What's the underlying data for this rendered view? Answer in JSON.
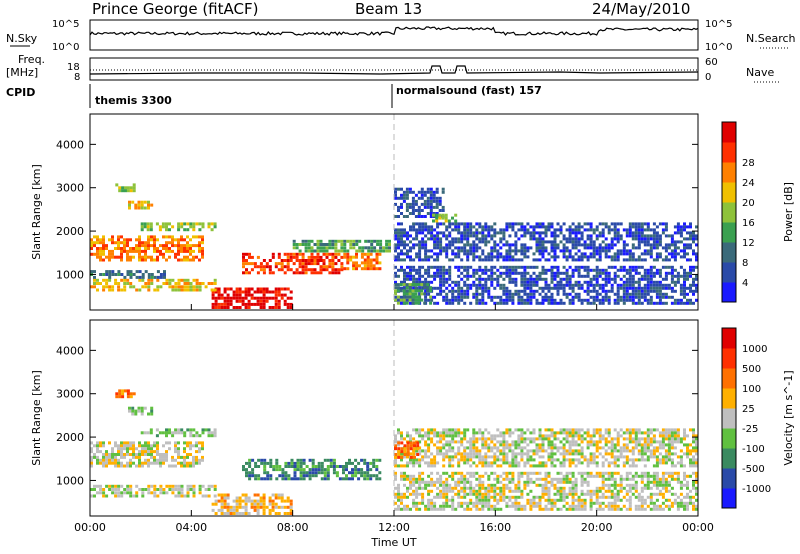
{
  "header": {
    "title": "Prince George (fitACF)",
    "beam": "Beam 13",
    "date": "24/May/2010"
  },
  "strips": {
    "nsky_label": "N.Sky",
    "nsky_hi": "10^5",
    "nsky_lo": "10^0",
    "nsearch_label": "N.Search",
    "nsearch_hi": "10^5",
    "nsearch_lo": "10^0",
    "freq_label": "Freq.",
    "freq_unit": "[MHz]",
    "freq_hi": "18",
    "freq_lo": "8",
    "nave_label": "Nave",
    "nave_hi": "60",
    "nave_lo": "0",
    "cpid_label": "CPID",
    "cpid_modes": [
      "themis 3300",
      "normalsound (fast) 157"
    ]
  },
  "chart_data": [
    {
      "type": "heatmap",
      "name": "power",
      "ylabel": "Slant Range [km]",
      "xlabel": "",
      "xlim": [
        0,
        24
      ],
      "ylim": [
        180,
        4700
      ],
      "yticks": [
        1000,
        2000,
        3000,
        4000
      ],
      "xticks": [
        0,
        4,
        8,
        12,
        16,
        20,
        24
      ],
      "colorbar": {
        "label": "Power [dB]",
        "ticks": [
          "4",
          "8",
          "12",
          "16",
          "20",
          "24",
          "28"
        ],
        "colors": [
          "#1a1aff",
          "#2a4aa8",
          "#3a6a7a",
          "#3aa050",
          "#8ec23a",
          "#f0c000",
          "#ff8000",
          "#ff3000",
          "#e00000"
        ]
      },
      "regions": [
        {
          "t0": 0.0,
          "t1": 4.5,
          "r0": 1300,
          "r1": 1900,
          "level": 6
        },
        {
          "t0": 2.0,
          "t1": 5.0,
          "r0": 2000,
          "r1": 2200,
          "level": 4
        },
        {
          "t0": 1.5,
          "t1": 2.5,
          "r0": 2500,
          "r1": 2700,
          "level": 5
        },
        {
          "t0": 1.0,
          "t1": 1.8,
          "r0": 2900,
          "r1": 3100,
          "level": 4
        },
        {
          "t0": 4.8,
          "t1": 8.0,
          "r0": 200,
          "r1": 700,
          "level": 8
        },
        {
          "t0": 6.0,
          "t1": 10.0,
          "r0": 1000,
          "r1": 1500,
          "level": 7
        },
        {
          "t0": 10.0,
          "t1": 11.5,
          "r0": 1100,
          "r1": 1500,
          "level": 6
        },
        {
          "t0": 0.0,
          "t1": 5.0,
          "r0": 600,
          "r1": 900,
          "level": 5
        },
        {
          "t0": 0.0,
          "t1": 3.0,
          "r0": 900,
          "r1": 1100,
          "level": 2
        },
        {
          "t0": 8.0,
          "t1": 12.0,
          "r0": 1500,
          "r1": 1800,
          "level": 3
        },
        {
          "t0": 12.0,
          "t1": 24.0,
          "r0": 300,
          "r1": 1200,
          "level": 1
        },
        {
          "t0": 12.0,
          "t1": 24.0,
          "r0": 1300,
          "r1": 2200,
          "level": 1
        },
        {
          "t0": 12.0,
          "t1": 14.0,
          "r0": 2300,
          "r1": 3000,
          "level": 1
        },
        {
          "t0": 13.5,
          "t1": 14.5,
          "r0": 2200,
          "r1": 2400,
          "level": 4
        },
        {
          "t0": 12.0,
          "t1": 13.5,
          "r0": 300,
          "r1": 800,
          "level": 3
        }
      ]
    },
    {
      "type": "heatmap",
      "name": "velocity",
      "ylabel": "Slant Range [km]",
      "xlabel": "Time UT",
      "xlim": [
        0,
        24
      ],
      "ylim": [
        180,
        4700
      ],
      "yticks": [
        1000,
        2000,
        3000,
        4000
      ],
      "xticks": [
        0,
        4,
        8,
        12,
        16,
        20,
        24
      ],
      "xticklabels": [
        "00:00",
        "04:00",
        "08:00",
        "12:00",
        "16:00",
        "20:00",
        "00:00"
      ],
      "colorbar": {
        "label": "Velocity  [m s^-1]",
        "ticks": [
          "1000",
          "500",
          "100",
          "25",
          "-25",
          "-100",
          "-500",
          "-1000"
        ],
        "colors": [
          "#1a1aff",
          "#2a4aa8",
          "#3a8a60",
          "#60c040",
          "#bfbfbf",
          "#ffb000",
          "#ff7000",
          "#ff3000",
          "#e00000"
        ]
      },
      "regions": [
        {
          "t0": 0.0,
          "t1": 4.5,
          "r0": 1300,
          "r1": 1900,
          "level": 4
        },
        {
          "t0": 4.8,
          "t1": 8.0,
          "r0": 200,
          "r1": 700,
          "level": 5
        },
        {
          "t0": 6.0,
          "t1": 11.5,
          "r0": 1000,
          "r1": 1500,
          "level": 2
        },
        {
          "t0": 1.5,
          "t1": 2.5,
          "r0": 2500,
          "r1": 2700,
          "level": 3
        },
        {
          "t0": 2.0,
          "t1": 5.0,
          "r0": 2000,
          "r1": 2200,
          "level": 3
        },
        {
          "t0": 0.0,
          "t1": 5.0,
          "r0": 600,
          "r1": 900,
          "level": 4
        },
        {
          "t0": 12.0,
          "t1": 24.0,
          "r0": 300,
          "r1": 1200,
          "level": 4
        },
        {
          "t0": 12.0,
          "t1": 24.0,
          "r0": 1300,
          "r1": 2200,
          "level": 4
        },
        {
          "t0": 12.0,
          "t1": 13.0,
          "r0": 1500,
          "r1": 1900,
          "level": 6
        },
        {
          "t0": 1.0,
          "t1": 1.8,
          "r0": 2900,
          "r1": 3100,
          "level": 6
        }
      ]
    }
  ]
}
